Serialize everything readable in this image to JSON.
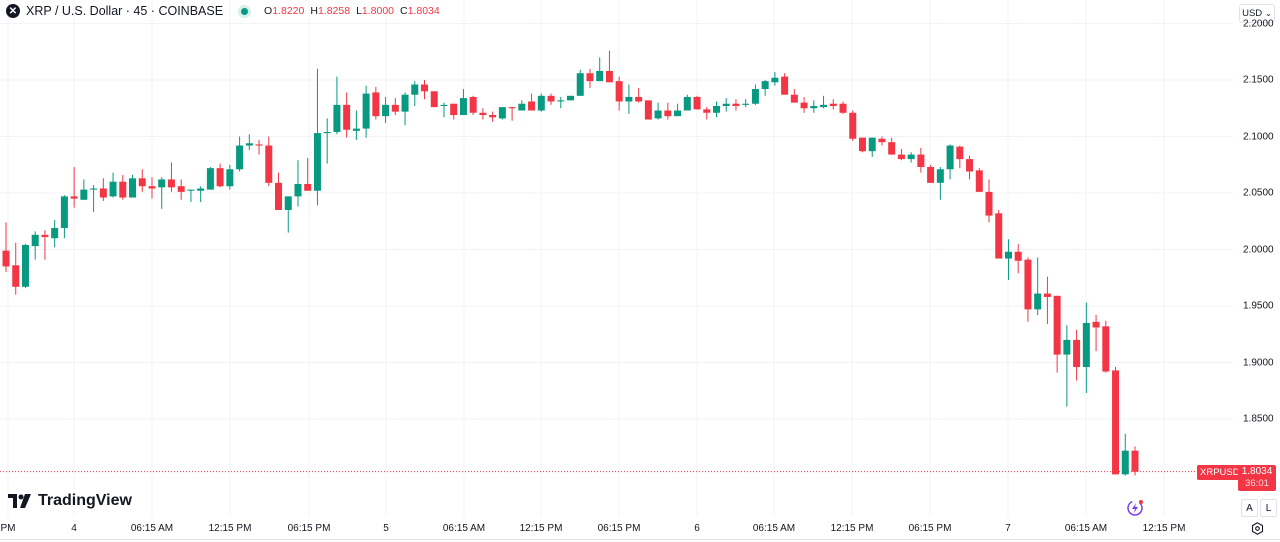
{
  "header": {
    "symbol_title": "XRP / U.S. Dollar · 45 · COINBASE",
    "logo_glyph": "✕",
    "ohlc": {
      "o_label": "O",
      "o": "1.8220",
      "h_label": "H",
      "h": "1.8258",
      "l_label": "L",
      "l": "1.8000",
      "c_label": "C",
      "c": "1.8034"
    }
  },
  "currency_button": {
    "label": "USD",
    "icon": "chevron-down-icon"
  },
  "price_axis": {
    "labels": [
      "2.2000",
      "2.1500",
      "2.1000",
      "2.0500",
      "2.0000",
      "1.9500",
      "1.9000",
      "1.8500"
    ]
  },
  "time_axis": {
    "labels": [
      "PM",
      "4",
      "06:15 AM",
      "12:15 PM",
      "06:15 PM",
      "5",
      "06:15 AM",
      "12:15 PM",
      "06:15 PM",
      "6",
      "06:15 AM",
      "12:15 PM",
      "06:15 PM",
      "7",
      "06:15 AM",
      "12:15 PM"
    ]
  },
  "last_price": {
    "symbol": "XRPUSD",
    "price": "1.8034",
    "countdown": "36:01"
  },
  "scale_buttons": {
    "auto": "A",
    "log": "L"
  },
  "branding": {
    "name": "TradingView"
  },
  "colors": {
    "up": "#089981",
    "down": "#f23645",
    "grid": "#f0f3fa",
    "text": "#131722"
  },
  "chart_data": {
    "type": "candlestick",
    "interval": "45",
    "ylim": [
      1.78,
      2.2
    ],
    "grid": true,
    "candles_ohlc": [
      [
        1.999,
        2.024,
        1.98,
        1.985
      ],
      [
        1.986,
        2.006,
        1.96,
        1.967
      ],
      [
        1.967,
        2.005,
        1.966,
        2.004
      ],
      [
        2.003,
        2.016,
        1.991,
        2.013
      ],
      [
        2.013,
        2.017,
        1.991,
        2.011
      ],
      [
        2.01,
        2.026,
        2.002,
        2.019
      ],
      [
        2.019,
        2.048,
        2.01,
        2.047
      ],
      [
        2.047,
        2.073,
        2.037,
        2.045
      ],
      [
        2.044,
        2.062,
        2.044,
        2.053
      ],
      [
        2.053,
        2.057,
        2.033,
        2.054
      ],
      [
        2.054,
        2.063,
        2.043,
        2.046
      ],
      [
        2.047,
        2.068,
        2.046,
        2.06
      ],
      [
        2.06,
        2.066,
        2.044,
        2.046
      ],
      [
        2.046,
        2.066,
        2.046,
        2.063
      ],
      [
        2.063,
        2.071,
        2.051,
        2.056
      ],
      [
        2.056,
        2.064,
        2.045,
        2.054
      ],
      [
        2.055,
        2.064,
        2.036,
        2.062
      ],
      [
        2.062,
        2.077,
        2.051,
        2.055
      ],
      [
        2.056,
        2.062,
        2.044,
        2.051
      ],
      [
        2.052,
        2.053,
        2.042,
        2.053
      ],
      [
        2.052,
        2.056,
        2.042,
        2.054
      ],
      [
        2.053,
        2.073,
        2.053,
        2.072
      ],
      [
        2.072,
        2.076,
        2.055,
        2.056
      ],
      [
        2.056,
        2.075,
        2.053,
        2.071
      ],
      [
        2.071,
        2.1,
        2.069,
        2.092
      ],
      [
        2.092,
        2.102,
        2.088,
        2.094
      ],
      [
        2.093,
        2.097,
        2.084,
        2.092
      ],
      [
        2.092,
        2.1,
        2.056,
        2.059
      ],
      [
        2.059,
        2.068,
        2.035,
        2.035
      ],
      [
        2.035,
        2.047,
        2.015,
        2.047
      ],
      [
        2.047,
        2.079,
        2.038,
        2.058
      ],
      [
        2.058,
        2.081,
        2.052,
        2.052
      ],
      [
        2.052,
        2.16,
        2.039,
        2.103
      ],
      [
        2.103,
        2.116,
        2.076,
        2.104
      ],
      [
        2.104,
        2.153,
        2.102,
        2.128
      ],
      [
        2.128,
        2.139,
        2.099,
        2.106
      ],
      [
        2.105,
        2.123,
        2.097,
        2.107
      ],
      [
        2.107,
        2.145,
        2.099,
        2.138
      ],
      [
        2.139,
        2.144,
        2.115,
        2.118
      ],
      [
        2.118,
        2.135,
        2.112,
        2.128
      ],
      [
        2.128,
        2.134,
        2.119,
        2.122
      ],
      [
        2.122,
        2.139,
        2.11,
        2.137
      ],
      [
        2.137,
        2.149,
        2.127,
        2.146
      ],
      [
        2.146,
        2.15,
        2.133,
        2.14
      ],
      [
        2.14,
        2.14,
        2.126,
        2.126
      ],
      [
        2.127,
        2.13,
        2.117,
        2.128
      ],
      [
        2.129,
        2.129,
        2.115,
        2.119
      ],
      [
        2.119,
        2.142,
        2.119,
        2.134
      ],
      [
        2.135,
        2.136,
        2.119,
        2.121
      ],
      [
        2.121,
        2.125,
        2.115,
        2.119
      ],
      [
        2.119,
        2.122,
        2.113,
        2.117
      ],
      [
        2.116,
        2.126,
        2.115,
        2.126
      ],
      [
        2.126,
        2.126,
        2.114,
        2.125
      ],
      [
        2.123,
        2.132,
        2.123,
        2.129
      ],
      [
        2.131,
        2.138,
        2.123,
        2.123
      ],
      [
        2.123,
        2.138,
        2.122,
        2.136
      ],
      [
        2.136,
        2.138,
        2.128,
        2.131
      ],
      [
        2.131,
        2.135,
        2.125,
        2.132
      ],
      [
        2.132,
        2.136,
        2.132,
        2.136
      ],
      [
        2.136,
        2.159,
        2.136,
        2.156
      ],
      [
        2.156,
        2.16,
        2.143,
        2.149
      ],
      [
        2.149,
        2.17,
        2.149,
        2.158
      ],
      [
        2.158,
        2.176,
        2.148,
        2.148
      ],
      [
        2.149,
        2.153,
        2.123,
        2.131
      ],
      [
        2.131,
        2.146,
        2.12,
        2.135
      ],
      [
        2.135,
        2.143,
        2.13,
        2.131
      ],
      [
        2.132,
        2.132,
        2.115,
        2.115
      ],
      [
        2.116,
        2.13,
        2.115,
        2.123
      ],
      [
        2.123,
        2.13,
        2.115,
        2.118
      ],
      [
        2.118,
        2.129,
        2.118,
        2.123
      ],
      [
        2.123,
        2.137,
        2.123,
        2.135
      ],
      [
        2.135,
        2.136,
        2.124,
        2.124
      ],
      [
        2.124,
        2.126,
        2.115,
        2.121
      ],
      [
        2.121,
        2.131,
        2.117,
        2.127
      ],
      [
        2.127,
        2.134,
        2.122,
        2.129
      ],
      [
        2.129,
        2.133,
        2.123,
        2.127
      ],
      [
        2.128,
        2.133,
        2.126,
        2.129
      ],
      [
        2.129,
        2.146,
        2.128,
        2.142
      ],
      [
        2.142,
        2.15,
        2.136,
        2.149
      ],
      [
        2.148,
        2.157,
        2.145,
        2.152
      ],
      [
        2.153,
        2.156,
        2.137,
        2.137
      ],
      [
        2.137,
        2.142,
        2.13,
        2.13
      ],
      [
        2.13,
        2.135,
        2.121,
        2.125
      ],
      [
        2.125,
        2.132,
        2.121,
        2.127
      ],
      [
        2.126,
        2.136,
        2.125,
        2.128
      ],
      [
        2.129,
        2.133,
        2.124,
        2.127
      ],
      [
        2.129,
        2.131,
        2.12,
        2.121
      ],
      [
        2.121,
        2.123,
        2.096,
        2.098
      ],
      [
        2.099,
        2.099,
        2.086,
        2.087
      ],
      [
        2.087,
        2.099,
        2.082,
        2.099
      ],
      [
        2.098,
        2.1,
        2.092,
        2.095
      ],
      [
        2.095,
        2.099,
        2.084,
        2.084
      ],
      [
        2.084,
        2.089,
        2.079,
        2.08
      ],
      [
        2.08,
        2.086,
        2.077,
        2.084
      ],
      [
        2.084,
        2.09,
        2.068,
        2.073
      ],
      [
        2.073,
        2.075,
        2.059,
        2.059
      ],
      [
        2.059,
        2.073,
        2.044,
        2.071
      ],
      [
        2.071,
        2.093,
        2.062,
        2.092
      ],
      [
        2.091,
        2.092,
        2.072,
        2.08
      ],
      [
        2.08,
        2.083,
        2.062,
        2.069
      ],
      [
        2.07,
        2.072,
        2.051,
        2.051
      ],
      [
        2.051,
        2.062,
        2.024,
        2.03
      ],
      [
        2.032,
        2.035,
        1.992,
        1.992
      ],
      [
        1.992,
        2.009,
        1.973,
        1.998
      ],
      [
        1.998,
        2.005,
        1.979,
        1.99
      ],
      [
        1.991,
        1.993,
        1.936,
        1.947
      ],
      [
        1.947,
        1.993,
        1.942,
        1.961
      ],
      [
        1.961,
        1.976,
        1.934,
        1.958
      ],
      [
        1.959,
        1.959,
        1.891,
        1.907
      ],
      [
        1.907,
        1.933,
        1.861,
        1.92
      ],
      [
        1.92,
        1.929,
        1.884,
        1.896
      ],
      [
        1.896,
        1.953,
        1.873,
        1.935
      ],
      [
        1.936,
        1.942,
        1.91,
        1.931
      ],
      [
        1.932,
        1.937,
        1.891,
        1.892
      ],
      [
        1.893,
        1.896,
        1.801,
        1.801
      ],
      [
        1.801,
        1.837,
        1.8,
        1.822
      ],
      [
        1.822,
        1.8258,
        1.8,
        1.8034
      ]
    ]
  }
}
